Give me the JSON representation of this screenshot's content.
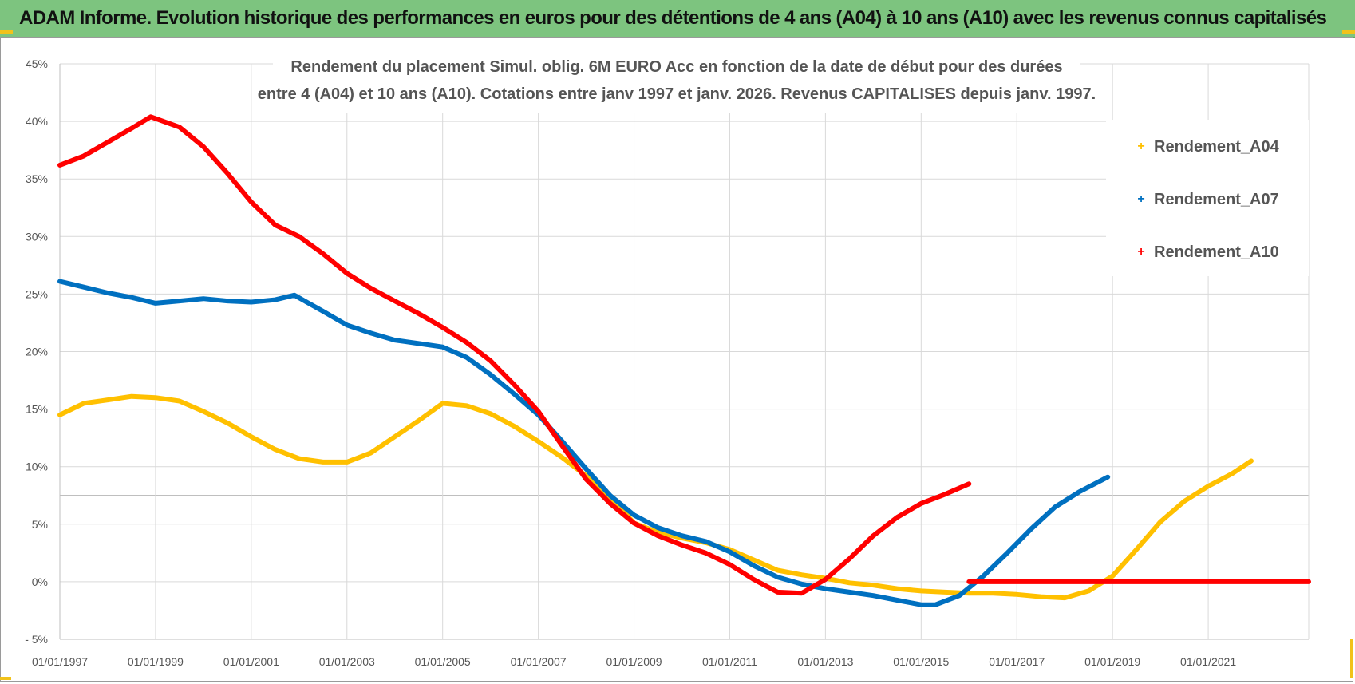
{
  "banner": {
    "title": "ADAM Informe. Evolution historique des performances en euros pour des détentions de 4 ans (A04) à 10 ans (A10) avec les revenus connus capitalisés"
  },
  "chart_data": {
    "type": "line",
    "title_line1": "Rendement du placement Simul. oblig. 6M EURO Acc en fonction de la date de début pour des durées",
    "title_line2": "entre 4 (A04) et 10 ans (A10). Cotations entre janv 1997 et janv. 2026. Revenus CAPITALISES depuis janv. 1997.",
    "xlabel": "",
    "ylabel": "",
    "xlim": [
      1997,
      2023.1
    ],
    "ylim": [
      -5,
      45
    ],
    "grid": true,
    "legend_position": "right",
    "x_ticks": [
      1997,
      1999,
      2001,
      2003,
      2005,
      2007,
      2009,
      2011,
      2013,
      2015,
      2017,
      2019,
      2021
    ],
    "x_tick_labels": [
      "01/01/1997",
      "01/01/1999",
      "01/01/2001",
      "01/01/2003",
      "01/01/2005",
      "01/01/2007",
      "01/01/2009",
      "01/01/2011",
      "01/01/2013",
      "01/01/2015",
      "01/01/2017",
      "01/01/2019",
      "01/01/2021"
    ],
    "y_ticks": [
      -5,
      0,
      5,
      10,
      15,
      20,
      25,
      30,
      35,
      40,
      45
    ],
    "y_tick_labels": [
      "- 5%",
      "0%",
      "5%",
      "10%",
      "15%",
      "20%",
      "25%",
      "30%",
      "35%",
      "40%",
      "45%"
    ],
    "series": [
      {
        "name": "Rendement_A04",
        "color": "#ffc000",
        "points": [
          [
            1997,
            14.5
          ],
          [
            1997.5,
            15.5
          ],
          [
            1998,
            15.8
          ],
          [
            1998.5,
            16.1
          ],
          [
            1999,
            16.0
          ],
          [
            1999.5,
            15.7
          ],
          [
            2000,
            14.8
          ],
          [
            2000.5,
            13.8
          ],
          [
            2001,
            12.6
          ],
          [
            2001.5,
            11.5
          ],
          [
            2002,
            10.7
          ],
          [
            2002.5,
            10.4
          ],
          [
            2003,
            10.4
          ],
          [
            2003.5,
            11.2
          ],
          [
            2004,
            12.6
          ],
          [
            2004.5,
            14.0
          ],
          [
            2005,
            15.5
          ],
          [
            2005.5,
            15.3
          ],
          [
            2006,
            14.6
          ],
          [
            2006.5,
            13.5
          ],
          [
            2007,
            12.2
          ],
          [
            2007.5,
            10.8
          ],
          [
            2008,
            9.2
          ],
          [
            2008.5,
            7.4
          ],
          [
            2009,
            5.1
          ],
          [
            2009.5,
            4.3
          ],
          [
            2010,
            3.8
          ],
          [
            2010.5,
            3.4
          ],
          [
            2011,
            2.8
          ],
          [
            2011.5,
            1.9
          ],
          [
            2012,
            1.0
          ],
          [
            2012.5,
            0.6
          ],
          [
            2013,
            0.3
          ],
          [
            2013.5,
            -0.1
          ],
          [
            2014,
            -0.3
          ],
          [
            2014.5,
            -0.6
          ],
          [
            2015,
            -0.8
          ],
          [
            2015.5,
            -0.9
          ],
          [
            2016,
            -1.0
          ],
          [
            2016.5,
            -1.0
          ],
          [
            2017,
            -1.1
          ],
          [
            2017.5,
            -1.3
          ],
          [
            2018,
            -1.4
          ],
          [
            2018.5,
            -0.8
          ],
          [
            2019,
            0.5
          ],
          [
            2019.5,
            2.8
          ],
          [
            2020,
            5.2
          ],
          [
            2020.5,
            7.0
          ],
          [
            2021,
            8.3
          ],
          [
            2021.5,
            9.4
          ],
          [
            2021.9,
            10.5
          ]
        ]
      },
      {
        "name": "Rendement_A07",
        "color": "#0070c0",
        "points": [
          [
            1997,
            26.1
          ],
          [
            1997.5,
            25.6
          ],
          [
            1998,
            25.1
          ],
          [
            1998.5,
            24.7
          ],
          [
            1999,
            24.2
          ],
          [
            1999.5,
            24.4
          ],
          [
            2000,
            24.6
          ],
          [
            2000.5,
            24.4
          ],
          [
            2001,
            24.3
          ],
          [
            2001.5,
            24.5
          ],
          [
            2001.9,
            24.9
          ],
          [
            2002.5,
            23.5
          ],
          [
            2003,
            22.3
          ],
          [
            2003.5,
            21.6
          ],
          [
            2004,
            21.0
          ],
          [
            2004.5,
            20.7
          ],
          [
            2005,
            20.4
          ],
          [
            2005.5,
            19.5
          ],
          [
            2006,
            18.0
          ],
          [
            2006.5,
            16.3
          ],
          [
            2007,
            14.5
          ],
          [
            2007.5,
            12.2
          ],
          [
            2008,
            9.8
          ],
          [
            2008.5,
            7.5
          ],
          [
            2009,
            5.8
          ],
          [
            2009.5,
            4.7
          ],
          [
            2010,
            4.0
          ],
          [
            2010.5,
            3.5
          ],
          [
            2011,
            2.6
          ],
          [
            2011.5,
            1.4
          ],
          [
            2012,
            0.4
          ],
          [
            2012.5,
            -0.2
          ],
          [
            2013,
            -0.6
          ],
          [
            2013.5,
            -0.9
          ],
          [
            2014,
            -1.2
          ],
          [
            2014.5,
            -1.6
          ],
          [
            2015,
            -2.0
          ],
          [
            2015.3,
            -2.0
          ],
          [
            2015.8,
            -1.2
          ],
          [
            2016.3,
            0.5
          ],
          [
            2016.8,
            2.5
          ],
          [
            2017.3,
            4.6
          ],
          [
            2017.8,
            6.5
          ],
          [
            2018.3,
            7.8
          ],
          [
            2018.9,
            9.1
          ]
        ]
      },
      {
        "name": "Rendement_A10",
        "color": "#ff0000",
        "points": [
          [
            1997,
            36.2
          ],
          [
            1997.5,
            37.0
          ],
          [
            1998,
            38.2
          ],
          [
            1998.5,
            39.4
          ],
          [
            1998.9,
            40.4
          ],
          [
            1999.5,
            39.5
          ],
          [
            2000,
            37.8
          ],
          [
            2000.5,
            35.5
          ],
          [
            2001,
            33.0
          ],
          [
            2001.5,
            31.0
          ],
          [
            2002,
            30.0
          ],
          [
            2002.5,
            28.5
          ],
          [
            2003,
            26.8
          ],
          [
            2003.5,
            25.5
          ],
          [
            2004,
            24.4
          ],
          [
            2004.5,
            23.3
          ],
          [
            2005,
            22.1
          ],
          [
            2005.5,
            20.8
          ],
          [
            2006,
            19.2
          ],
          [
            2006.5,
            17.1
          ],
          [
            2007,
            14.8
          ],
          [
            2007.5,
            11.8
          ],
          [
            2008,
            8.9
          ],
          [
            2008.5,
            6.8
          ],
          [
            2009,
            5.1
          ],
          [
            2009.5,
            4.0
          ],
          [
            2010,
            3.2
          ],
          [
            2010.5,
            2.5
          ],
          [
            2011,
            1.5
          ],
          [
            2011.5,
            0.2
          ],
          [
            2012,
            -0.9
          ],
          [
            2012.5,
            -1.0
          ],
          [
            2013,
            0.2
          ],
          [
            2013.5,
            2.0
          ],
          [
            2014,
            4.0
          ],
          [
            2014.5,
            5.6
          ],
          [
            2015,
            6.8
          ],
          [
            2015.5,
            7.6
          ],
          [
            2016,
            8.5
          ]
        ]
      },
      {
        "name": "Rendement_A10",
        "legend": false,
        "color": "#ff0000",
        "points": [
          [
            2016,
            0.0
          ],
          [
            2023.1,
            0.0
          ]
        ]
      }
    ]
  }
}
